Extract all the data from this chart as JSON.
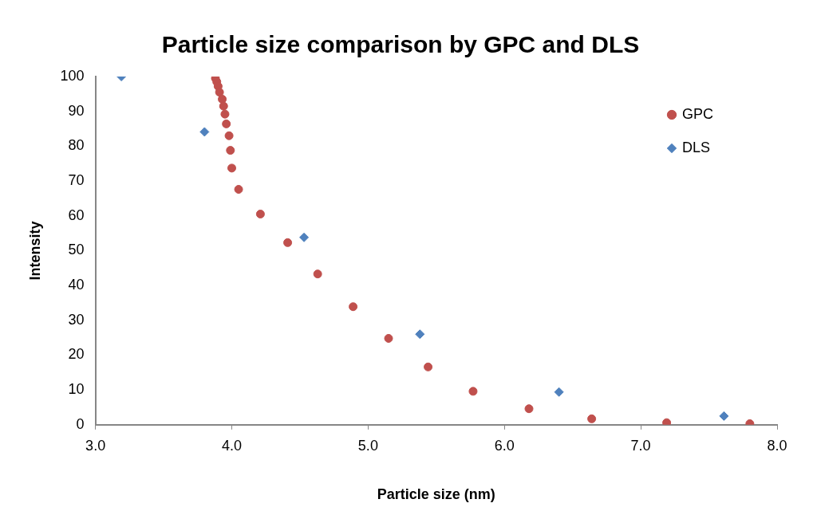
{
  "chart_data": {
    "type": "scatter",
    "title": "Particle size comparison by GPC and DLS",
    "xlabel": "Particle size (nm)",
    "ylabel": "Intensity",
    "xlim": [
      3.0,
      8.0
    ],
    "xticks": [
      {
        "value": 3,
        "label": "3.0"
      },
      {
        "value": 4,
        "label": "4.0"
      },
      {
        "value": 5,
        "label": "5.0"
      },
      {
        "value": 6,
        "label": "6.0"
      },
      {
        "value": 7,
        "label": "7.0"
      },
      {
        "value": 8,
        "label": "8.0"
      }
    ],
    "ylim": [
      0,
      100
    ],
    "yticks": [
      0,
      10,
      20,
      30,
      40,
      50,
      60,
      70,
      80,
      90,
      100
    ],
    "grid": false,
    "legend": "top right",
    "series": [
      {
        "name": "GPC",
        "color": "#c0504d",
        "marker": "circle",
        "x": [
          3.88,
          3.89,
          3.9,
          3.91,
          3.93,
          3.94,
          3.95,
          3.96,
          3.98,
          3.99,
          4.0,
          4.05,
          4.21,
          4.41,
          4.63,
          4.89,
          5.15,
          5.44,
          5.77,
          6.18,
          6.64,
          7.19,
          7.8
        ],
        "values": [
          99.5,
          98.5,
          97.2,
          95.5,
          93.5,
          91.5,
          89.2,
          86.4,
          83,
          78.8,
          73.7,
          67.6,
          60.5,
          52.3,
          43.3,
          33.9,
          24.8,
          16.6,
          9.6,
          4.6,
          1.7,
          0.6,
          0.3
        ]
      },
      {
        "name": "DLS",
        "color": "#4f81bd",
        "marker": "diamond",
        "x": [
          3.19,
          3.8,
          4.53,
          5.38,
          6.4,
          7.61
        ],
        "values": [
          100,
          84.1,
          53.8,
          26,
          9.4,
          2.5
        ]
      }
    ]
  }
}
